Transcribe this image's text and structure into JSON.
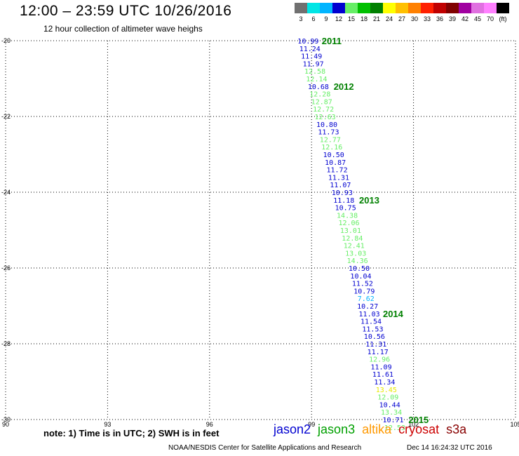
{
  "header": {
    "title": "12:00 – 23:59 UTC 10/26/2016",
    "subtitle": "12 hour collection of altimeter wave heighs"
  },
  "color_scale": {
    "labels": [
      "3",
      "6",
      "9",
      "12",
      "15",
      "18",
      "21",
      "24",
      "27",
      "30",
      "33",
      "36",
      "39",
      "42",
      "45",
      "70",
      "(ft)"
    ],
    "colors": [
      "#707070",
      "#00e5e5",
      "#00b4ff",
      "#0000d0",
      "#66ee66",
      "#00c000",
      "#008000",
      "#ffff00",
      "#ffc000",
      "#ff8000",
      "#ff2000",
      "#c00000",
      "#800000",
      "#a000a0",
      "#e070e0",
      "#ff80ff",
      "#000000"
    ]
  },
  "chart_data": {
    "type": "scatter",
    "title": "12:00 – 23:59 UTC 10/26/2016",
    "subtitle": "12 hour collection of altimeter wave heighs",
    "xlim": [
      90,
      105
    ],
    "ylim": [
      -30,
      -20
    ],
    "xticks": [
      "90",
      "93",
      "96",
      "99",
      "102",
      "105"
    ],
    "yticks": [
      "-20",
      "-22",
      "-24",
      "-26",
      "-28",
      "-30"
    ],
    "grid": true,
    "points": [
      {
        "lon": 98.9,
        "lat": -20.0,
        "swh": "10.99",
        "color": "#0000d0"
      },
      {
        "lon": 98.95,
        "lat": -20.2,
        "swh": "11.24",
        "color": "#0000d0"
      },
      {
        "lon": 99.0,
        "lat": -20.4,
        "swh": "11.49",
        "color": "#0000d0"
      },
      {
        "lon": 99.05,
        "lat": -20.6,
        "swh": "11.97",
        "color": "#0000d0"
      },
      {
        "lon": 99.1,
        "lat": -20.8,
        "swh": "12.58",
        "color": "#66ee66"
      },
      {
        "lon": 99.15,
        "lat": -21.0,
        "swh": "12.14",
        "color": "#66ee66"
      },
      {
        "lon": 99.2,
        "lat": -21.2,
        "swh": "10.68",
        "color": "#0000d0"
      },
      {
        "lon": 99.25,
        "lat": -21.4,
        "swh": "12.28",
        "color": "#66ee66"
      },
      {
        "lon": 99.3,
        "lat": -21.6,
        "swh": "12.87",
        "color": "#66ee66"
      },
      {
        "lon": 99.35,
        "lat": -21.8,
        "swh": "12.72",
        "color": "#66ee66"
      },
      {
        "lon": 99.4,
        "lat": -22.0,
        "swh": "12.63",
        "color": "#66ee66"
      },
      {
        "lon": 99.45,
        "lat": -22.2,
        "swh": "10.80",
        "color": "#0000d0"
      },
      {
        "lon": 99.5,
        "lat": -22.4,
        "swh": "11.73",
        "color": "#0000d0"
      },
      {
        "lon": 99.55,
        "lat": -22.6,
        "swh": "12.77",
        "color": "#66ee66"
      },
      {
        "lon": 99.6,
        "lat": -22.8,
        "swh": "12.16",
        "color": "#66ee66"
      },
      {
        "lon": 99.65,
        "lat": -23.0,
        "swh": "10.50",
        "color": "#0000d0"
      },
      {
        "lon": 99.7,
        "lat": -23.2,
        "swh": "10.87",
        "color": "#0000d0"
      },
      {
        "lon": 99.75,
        "lat": -23.4,
        "swh": "11.72",
        "color": "#0000d0"
      },
      {
        "lon": 99.8,
        "lat": -23.6,
        "swh": "11.31",
        "color": "#0000d0"
      },
      {
        "lon": 99.85,
        "lat": -23.8,
        "swh": "11.07",
        "color": "#0000d0"
      },
      {
        "lon": 99.9,
        "lat": -24.0,
        "swh": "10.93",
        "color": "#0000d0"
      },
      {
        "lon": 99.95,
        "lat": -24.2,
        "swh": "11.18",
        "color": "#0000d0"
      },
      {
        "lon": 100.0,
        "lat": -24.4,
        "swh": "10.75",
        "color": "#0000d0"
      },
      {
        "lon": 100.05,
        "lat": -24.6,
        "swh": "14.38",
        "color": "#66ee66"
      },
      {
        "lon": 100.1,
        "lat": -24.8,
        "swh": "12.06",
        "color": "#66ee66"
      },
      {
        "lon": 100.15,
        "lat": -25.0,
        "swh": "13.01",
        "color": "#66ee66"
      },
      {
        "lon": 100.2,
        "lat": -25.2,
        "swh": "12.84",
        "color": "#66ee66"
      },
      {
        "lon": 100.25,
        "lat": -25.4,
        "swh": "12.41",
        "color": "#66ee66"
      },
      {
        "lon": 100.3,
        "lat": -25.6,
        "swh": "13.03",
        "color": "#66ee66"
      },
      {
        "lon": 100.35,
        "lat": -25.8,
        "swh": "14.36",
        "color": "#66ee66"
      },
      {
        "lon": 100.4,
        "lat": -26.0,
        "swh": "10.50",
        "color": "#0000d0"
      },
      {
        "lon": 100.45,
        "lat": -26.2,
        "swh": "10.04",
        "color": "#0000d0"
      },
      {
        "lon": 100.5,
        "lat": -26.4,
        "swh": "11.52",
        "color": "#0000d0"
      },
      {
        "lon": 100.55,
        "lat": -26.6,
        "swh": "10.79",
        "color": "#0000d0"
      },
      {
        "lon": 100.6,
        "lat": -26.8,
        "swh": "7.62",
        "color": "#00b4ff"
      },
      {
        "lon": 100.65,
        "lat": -27.0,
        "swh": "10.27",
        "color": "#0000d0"
      },
      {
        "lon": 100.7,
        "lat": -27.2,
        "swh": "11.03",
        "color": "#0000d0"
      },
      {
        "lon": 100.75,
        "lat": -27.4,
        "swh": "11.54",
        "color": "#0000d0"
      },
      {
        "lon": 100.8,
        "lat": -27.6,
        "swh": "11.53",
        "color": "#0000d0"
      },
      {
        "lon": 100.85,
        "lat": -27.8,
        "swh": "10.56",
        "color": "#0000d0"
      },
      {
        "lon": 100.9,
        "lat": -28.0,
        "swh": "11.31",
        "color": "#0000d0"
      },
      {
        "lon": 100.95,
        "lat": -28.2,
        "swh": "11.17",
        "color": "#0000d0"
      },
      {
        "lon": 101.0,
        "lat": -28.4,
        "swh": "12.96",
        "color": "#66ee66"
      },
      {
        "lon": 101.05,
        "lat": -28.6,
        "swh": "11.09",
        "color": "#0000d0"
      },
      {
        "lon": 101.1,
        "lat": -28.8,
        "swh": "11.61",
        "color": "#0000d0"
      },
      {
        "lon": 101.15,
        "lat": -29.0,
        "swh": "11.34",
        "color": "#0000d0"
      },
      {
        "lon": 101.2,
        "lat": -29.2,
        "swh": "13.45",
        "color": "#e8e800"
      },
      {
        "lon": 101.25,
        "lat": -29.4,
        "swh": "12.09",
        "color": "#66ee66"
      },
      {
        "lon": 101.3,
        "lat": -29.6,
        "swh": "10.44",
        "color": "#0000d0"
      },
      {
        "lon": 101.35,
        "lat": -29.8,
        "swh": "13.34",
        "color": "#66ee66"
      },
      {
        "lon": 101.4,
        "lat": -30.0,
        "swh": "10.71",
        "color": "#0000d0"
      },
      {
        "lon": 101.45,
        "lat": -30.2,
        "swh": "12.53",
        "color": "#66ee66"
      }
    ],
    "time_labels": [
      {
        "text": "2011",
        "lon": 99.3,
        "lat": -20.0
      },
      {
        "text": "2012",
        "lon": 99.65,
        "lat": -21.2
      },
      {
        "text": "2013",
        "lon": 100.4,
        "lat": -24.2
      },
      {
        "text": "2014",
        "lon": 101.1,
        "lat": -27.2
      },
      {
        "text": "2015",
        "lon": 101.85,
        "lat": -30.0
      }
    ]
  },
  "footer": {
    "note": "note: 1) Time is in UTC; 2) SWH is in feet",
    "legend": [
      {
        "name": "jason2",
        "color": "#0000d0"
      },
      {
        "name": "jason3",
        "color": "#00a000"
      },
      {
        "name": "altika",
        "color": "#ff9900"
      },
      {
        "name": "cryosat",
        "color": "#cc0000"
      },
      {
        "name": "s3a",
        "color": "#880000"
      }
    ],
    "credit": "NOAA/NESDIS Center for Satellite Applications and Research",
    "timestamp": "Dec 14 16:24:32 UTC 2016"
  }
}
